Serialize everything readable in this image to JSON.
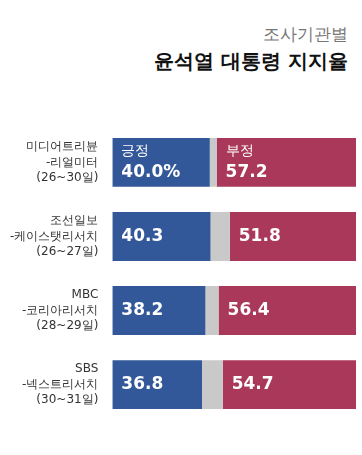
{
  "chart_data": {
    "type": "bar",
    "subtitle": "조사기관별",
    "title": "윤석열 대통령 지지율",
    "orientation": "horizontal",
    "stacked": true,
    "data_labels": true,
    "tick_labels": "y",
    "grid": false,
    "categories": [
      [
        "미디어트리뷴",
        "-리얼미터",
        "(26~30일)"
      ],
      [
        "조선일보",
        "-케이스탯리서치",
        "(26~27일)"
      ],
      [
        "MBC",
        "-코리아리서치",
        "(28~29일)"
      ],
      [
        "SBS",
        "-넥스트리서치",
        "(30~31일)"
      ]
    ],
    "xlim": [
      0,
      100
    ],
    "series": [
      {
        "name": "긍정",
        "color": "#33589a",
        "values": [
          40.0,
          40.3,
          38.2,
          36.8
        ],
        "value_labels": [
          "40.0%",
          "40.3",
          "38.2",
          "36.8"
        ]
      },
      {
        "color": "#c9c9c9",
        "values": [
          2.8,
          7.9,
          5.4,
          8.5
        ],
        "value_labels": [
          null,
          null,
          null,
          null
        ]
      },
      {
        "name": "부정",
        "color": "#a9385a",
        "values": [
          57.2,
          51.8,
          56.4,
          54.7
        ]
      }
    ]
  }
}
